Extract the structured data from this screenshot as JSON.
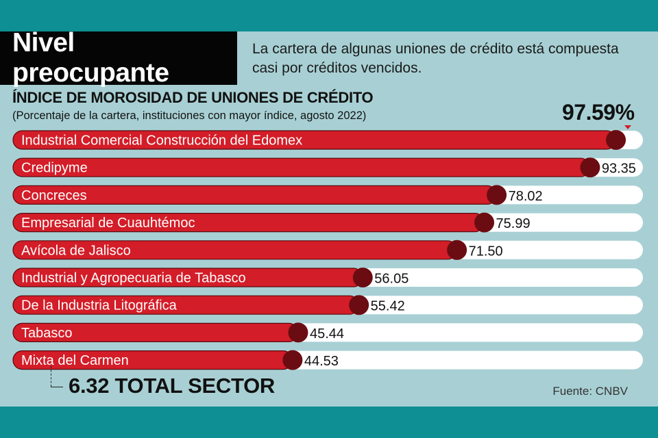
{
  "header": {
    "title": "Nivel preocupante",
    "description": "La cartera de algunas uniones de crédito está compuesta casi por créditos vencidos."
  },
  "chart_data": {
    "type": "bar",
    "orientation": "horizontal",
    "title": "ÍNDICE DE MOROSIDAD DE UNIONES DE CRÉDITO",
    "subtitle": "(Porcentaje de la cartera, instituciones con mayor índice, agosto 2022)",
    "categories": [
      "Industrial Comercial Construcción del Edomex",
      "Credipyme",
      "Concreces",
      "Empresarial de Cuauhtémoc",
      "Avícola de Jalisco",
      "Industrial y Agropecuaria de Tabasco",
      "De la Industria Litográfica",
      "Tabasco",
      "Mixta del Carmen"
    ],
    "values": [
      97.59,
      93.35,
      78.02,
      75.99,
      71.5,
      56.05,
      55.42,
      45.44,
      44.53
    ],
    "value_labels": [
      "97.59%",
      "93.35",
      "78.02",
      "75.99",
      "71.50",
      "56.05",
      "55.42",
      "45.44",
      "44.53"
    ],
    "xlim": [
      0,
      100
    ],
    "reference_line": {
      "value": 6.32,
      "label": "6.32 TOTAL SECTOR"
    },
    "colors": {
      "bar": "#d31d28",
      "track": "#ffffff",
      "marker": "#6b0c12",
      "bar_border": "#5a0a0f"
    }
  },
  "source": "Fuente: CNBV"
}
